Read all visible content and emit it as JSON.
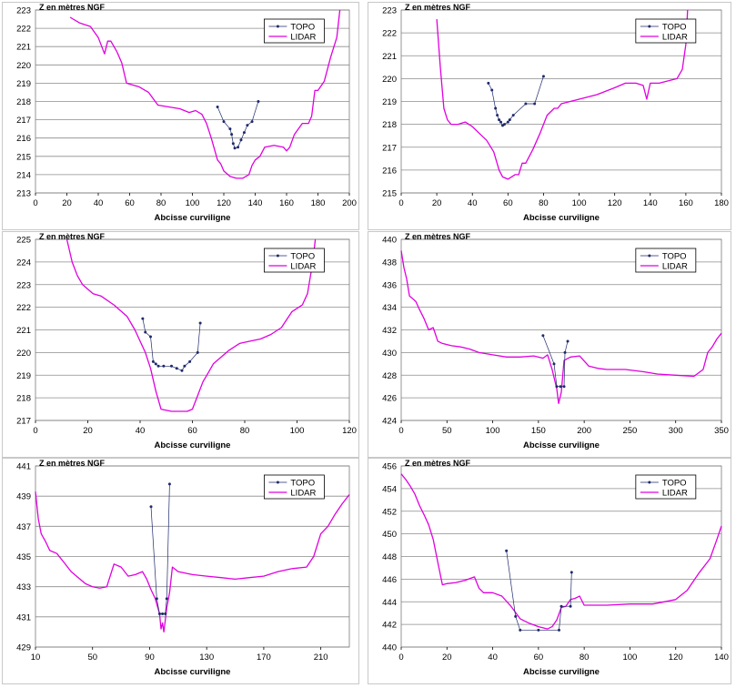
{
  "chart_data": [
    {
      "type": "line",
      "ylabel": "Z en mètres NGF",
      "xlabel": "Abcisse curviligne",
      "xlim": [
        0,
        200
      ],
      "ylim": [
        213,
        223
      ],
      "xticks": [
        0,
        20,
        40,
        60,
        80,
        100,
        120,
        140,
        160,
        180,
        200
      ],
      "yticks": [
        213,
        214,
        215,
        216,
        217,
        218,
        219,
        220,
        221,
        222,
        223
      ],
      "grid": "horizontal",
      "legend": "top-right",
      "series": [
        {
          "name": "TOPO",
          "color": "#1f2a6b",
          "markers": true,
          "x": [
            116,
            120,
            124,
            125,
            126,
            127,
            129,
            131,
            133,
            135,
            138,
            142
          ],
          "y": [
            217.7,
            216.9,
            216.5,
            216.2,
            215.7,
            215.45,
            215.5,
            215.9,
            216.3,
            216.7,
            216.9,
            218.0
          ]
        },
        {
          "name": "LIDAR",
          "color": "#e000e0",
          "markers": false,
          "x": [
            22,
            28,
            35,
            40,
            44,
            46,
            48,
            50,
            52,
            55,
            58,
            62,
            66,
            72,
            78,
            85,
            92,
            98,
            102,
            106,
            109,
            112,
            116,
            118,
            120,
            124,
            128,
            132,
            136,
            138,
            140,
            143,
            146,
            152,
            158,
            160,
            162,
            165,
            170,
            172,
            174,
            176,
            178,
            180,
            184,
            188,
            192,
            194
          ],
          "y": [
            222.6,
            222.3,
            222.1,
            221.5,
            220.6,
            221.3,
            221.3,
            221.0,
            220.7,
            220.1,
            219.0,
            218.9,
            218.8,
            218.5,
            217.8,
            217.7,
            217.6,
            217.4,
            217.5,
            217.3,
            216.8,
            216.0,
            214.8,
            214.6,
            214.2,
            213.9,
            213.8,
            213.8,
            214.0,
            214.5,
            214.8,
            215.0,
            215.5,
            215.6,
            215.5,
            215.3,
            215.5,
            216.2,
            216.8,
            216.8,
            216.8,
            217.2,
            218.6,
            218.6,
            219.1,
            220.4,
            221.5,
            223.0
          ]
        }
      ]
    },
    {
      "type": "line",
      "ylabel": "Z en mètres NGF",
      "xlabel": "Abcisse curviligne",
      "xlim": [
        0,
        180
      ],
      "ylim": [
        215,
        223
      ],
      "xticks": [
        0,
        20,
        40,
        60,
        80,
        100,
        120,
        140,
        160,
        180
      ],
      "yticks": [
        215,
        216,
        217,
        218,
        219,
        220,
        221,
        222,
        223
      ],
      "grid": "horizontal",
      "legend": "top-right",
      "series": [
        {
          "name": "TOPO",
          "color": "#1f2a6b",
          "markers": true,
          "x": [
            49,
            51,
            53,
            54,
            55,
            56,
            57,
            58,
            60,
            61,
            63,
            70,
            75,
            80
          ],
          "y": [
            219.8,
            219.5,
            218.7,
            218.4,
            218.2,
            218.1,
            217.95,
            218.0,
            218.1,
            218.2,
            218.4,
            218.9,
            218.9,
            220.1
          ]
        },
        {
          "name": "LIDAR",
          "color": "#e000e0",
          "markers": false,
          "x": [
            20,
            22,
            24,
            26,
            28,
            32,
            36,
            40,
            44,
            48,
            52,
            55,
            57,
            60,
            64,
            66,
            68,
            70,
            74,
            78,
            82,
            86,
            88,
            90,
            95,
            100,
            110,
            120,
            126,
            132,
            136,
            138,
            140,
            145,
            150,
            155,
            158,
            160,
            161
          ],
          "y": [
            222.6,
            220.5,
            218.7,
            218.2,
            218.0,
            218.0,
            218.1,
            217.9,
            217.6,
            217.3,
            216.8,
            216.0,
            215.7,
            215.6,
            215.8,
            215.8,
            216.3,
            216.3,
            216.9,
            217.6,
            218.4,
            218.7,
            218.7,
            218.9,
            219.0,
            219.1,
            219.3,
            219.6,
            219.8,
            219.8,
            219.7,
            219.1,
            219.8,
            219.8,
            219.9,
            220.0,
            220.4,
            221.5,
            223.0
          ]
        }
      ]
    },
    {
      "type": "line",
      "ylabel": "Z en mètres NGF",
      "xlabel": "Abcisse curviligne",
      "xlim": [
        0,
        120
      ],
      "ylim": [
        217,
        225
      ],
      "xticks": [
        0,
        20,
        40,
        60,
        80,
        100,
        120
      ],
      "yticks": [
        217,
        218,
        219,
        220,
        221,
        222,
        223,
        224,
        225
      ],
      "grid": "horizontal",
      "legend": "top-right",
      "series": [
        {
          "name": "TOPO",
          "color": "#1f2a6b",
          "markers": true,
          "x": [
            41,
            42,
            44,
            45,
            46,
            47,
            49,
            52,
            54,
            56,
            57,
            59,
            62,
            63
          ],
          "y": [
            221.5,
            220.9,
            220.7,
            219.6,
            219.5,
            219.4,
            219.4,
            219.4,
            219.3,
            219.2,
            219.4,
            219.6,
            220.0,
            221.3
          ]
        },
        {
          "name": "LIDAR",
          "color": "#e000e0",
          "markers": false,
          "x": [
            12,
            14,
            16,
            18,
            20,
            22,
            25,
            30,
            35,
            38,
            40,
            42,
            44,
            46,
            48,
            52,
            56,
            58,
            60,
            62,
            64,
            66,
            68,
            70,
            74,
            78,
            82,
            86,
            90,
            94,
            98,
            102,
            104,
            106,
            107
          ],
          "y": [
            225.0,
            224.0,
            223.4,
            223.0,
            222.8,
            222.6,
            222.5,
            222.1,
            221.6,
            221.0,
            220.5,
            220.0,
            219.3,
            218.3,
            217.5,
            217.4,
            217.4,
            217.4,
            217.5,
            218.1,
            218.7,
            219.1,
            219.5,
            219.7,
            220.1,
            220.4,
            220.5,
            220.6,
            220.8,
            221.1,
            221.8,
            222.1,
            222.6,
            224.0,
            225.0
          ]
        }
      ]
    },
    {
      "type": "line",
      "ylabel": "Z en mètres NGF",
      "xlabel": "Abcisse curviligne",
      "xlim": [
        0,
        350
      ],
      "ylim": [
        424,
        440
      ],
      "xticks": [
        0,
        50,
        100,
        150,
        200,
        250,
        300,
        350
      ],
      "yticks": [
        424,
        426,
        428,
        430,
        432,
        434,
        436,
        438,
        440
      ],
      "grid": "horizontal",
      "legend": "top-right",
      "series": [
        {
          "name": "TOPO",
          "color": "#1f2a6b",
          "markers": true,
          "x": [
            155,
            167,
            170,
            174,
            178,
            179,
            182
          ],
          "y": [
            431.5,
            429.0,
            427.0,
            427.0,
            427.0,
            430.0,
            431.0
          ]
        },
        {
          "name": "LIDAR",
          "color": "#e000e0",
          "markers": false,
          "x": [
            0,
            3,
            6,
            9,
            12,
            16,
            20,
            25,
            30,
            35,
            40,
            45,
            55,
            65,
            75,
            85,
            100,
            115,
            130,
            145,
            155,
            160,
            165,
            170,
            172,
            175,
            178,
            185,
            195,
            205,
            215,
            225,
            245,
            265,
            280,
            300,
            320,
            330,
            335,
            340,
            345,
            350
          ],
          "y": [
            439.0,
            437.5,
            436.5,
            435.0,
            434.8,
            434.5,
            433.8,
            433.0,
            432.0,
            432.2,
            431.0,
            430.8,
            430.6,
            430.5,
            430.3,
            430.0,
            429.8,
            429.6,
            429.6,
            429.7,
            429.5,
            429.8,
            428.5,
            426.8,
            425.5,
            426.5,
            429.3,
            429.6,
            429.7,
            428.8,
            428.6,
            428.5,
            428.5,
            428.3,
            428.1,
            428.0,
            427.9,
            428.5,
            430.0,
            430.5,
            431.2,
            431.7
          ]
        }
      ]
    },
    {
      "type": "line",
      "ylabel": "Z en mètres NGF",
      "xlabel": "Abcisse curviligne",
      "xlim": [
        10,
        230
      ],
      "ylim": [
        429,
        441
      ],
      "xticks": [
        10,
        50,
        90,
        130,
        170,
        210
      ],
      "yticks": [
        429,
        431,
        433,
        435,
        437,
        439,
        441
      ],
      "grid": "horizontal",
      "legend": "top-right",
      "series": [
        {
          "name": "TOPO",
          "color": "#1f2a6b",
          "markers": true,
          "x": [
            91,
            95,
            97,
            99,
            101,
            102,
            104
          ],
          "y": [
            438.3,
            432.2,
            431.2,
            431.2,
            431.2,
            432.2,
            439.8
          ]
        },
        {
          "name": "LIDAR",
          "color": "#e000e0",
          "markers": false,
          "x": [
            10,
            12,
            14,
            17,
            20,
            25,
            30,
            35,
            40,
            45,
            50,
            55,
            60,
            65,
            70,
            75,
            80,
            85,
            88,
            91,
            94,
            97,
            98,
            99,
            100,
            102,
            104,
            106,
            110,
            120,
            130,
            140,
            150,
            160,
            170,
            180,
            190,
            200,
            205,
            210,
            215,
            220,
            225,
            230
          ],
          "y": [
            439.3,
            437.5,
            436.5,
            436.0,
            435.4,
            435.2,
            434.6,
            434.0,
            433.6,
            433.2,
            433.0,
            432.9,
            433.0,
            434.5,
            434.3,
            433.7,
            433.8,
            434.0,
            433.5,
            432.8,
            432.2,
            431.2,
            430.2,
            430.6,
            430.0,
            431.6,
            432.6,
            434.3,
            434.0,
            433.8,
            433.7,
            433.6,
            433.5,
            433.6,
            433.7,
            434.0,
            434.2,
            434.3,
            435.0,
            436.5,
            437.0,
            437.8,
            438.5,
            439.1
          ]
        }
      ]
    },
    {
      "type": "line",
      "ylabel": "Z en mètres NGF",
      "xlabel": "Abcisse curviligne",
      "xlim": [
        0,
        140
      ],
      "ylim": [
        440,
        456
      ],
      "xticks": [
        0,
        20,
        40,
        60,
        80,
        100,
        120,
        140
      ],
      "yticks": [
        440,
        442,
        444,
        446,
        448,
        450,
        452,
        454,
        456
      ],
      "grid": "horizontal",
      "legend": "top-right",
      "series": [
        {
          "name": "TOPO",
          "color": "#1f2a6b",
          "markers": true,
          "x": [
            46,
            50,
            52,
            60,
            69,
            70,
            74,
            74.5
          ],
          "y": [
            448.5,
            442.7,
            441.5,
            441.5,
            441.5,
            443.6,
            443.6,
            446.6
          ]
        },
        {
          "name": "LIDAR",
          "color": "#e000e0",
          "markers": false,
          "x": [
            0,
            2,
            4,
            6,
            8,
            10,
            12,
            14,
            16,
            18,
            20,
            24,
            28,
            32,
            34,
            36,
            40,
            44,
            48,
            52,
            56,
            60,
            64,
            66,
            68,
            70,
            72,
            74,
            76,
            78,
            80,
            90,
            100,
            110,
            115,
            120,
            125,
            130,
            135,
            138,
            140
          ],
          "y": [
            455.3,
            454.8,
            454.2,
            453.5,
            452.5,
            451.7,
            450.8,
            449.5,
            447.5,
            445.5,
            445.6,
            445.7,
            445.9,
            446.2,
            445.2,
            444.8,
            444.8,
            444.5,
            443.6,
            442.5,
            442.1,
            441.8,
            441.6,
            441.8,
            442.4,
            443.5,
            443.6,
            444.2,
            444.3,
            444.5,
            443.7,
            443.7,
            443.8,
            443.8,
            444.0,
            444.2,
            445.0,
            446.5,
            447.8,
            449.5,
            450.7
          ]
        }
      ]
    }
  ]
}
